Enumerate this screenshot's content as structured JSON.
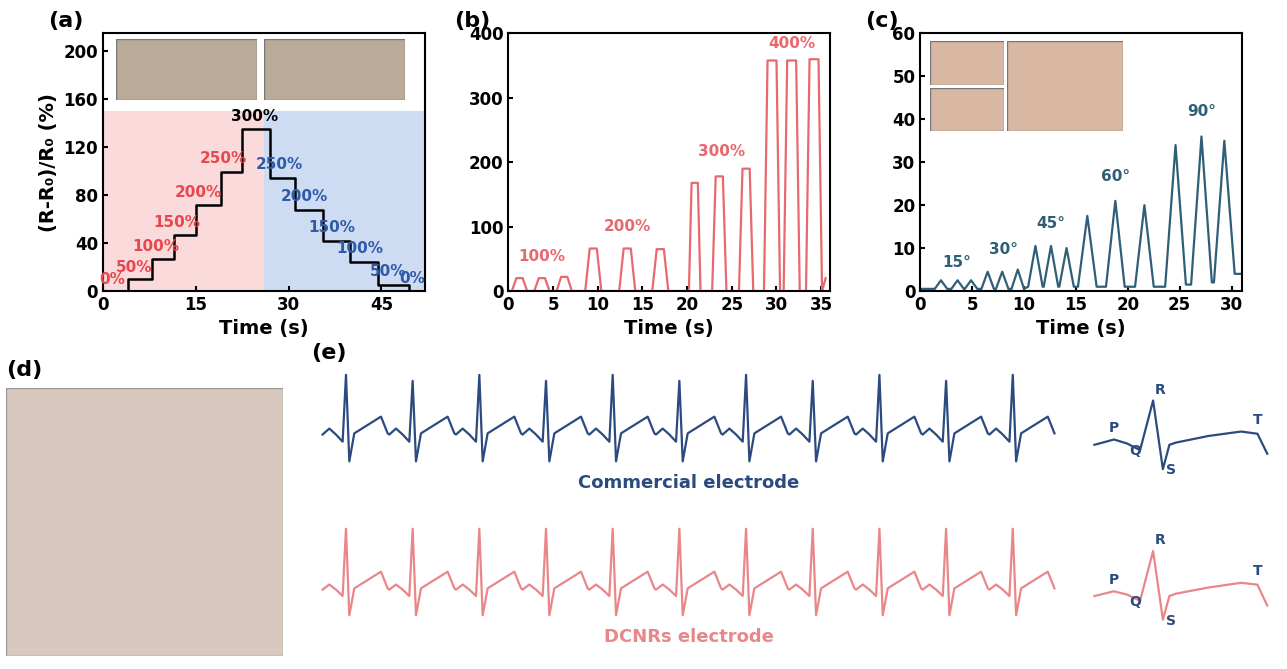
{
  "chart_data": [
    {
      "type": "line",
      "panel_label": "(a)",
      "x_label": "Time (s)",
      "y_label": "(R-R₀)/R₀ (%)",
      "xlim": [
        0,
        52
      ],
      "xticks": [
        0,
        15,
        30,
        45
      ],
      "ylim": [
        0,
        215
      ],
      "yticks": [
        0,
        40,
        80,
        120,
        160,
        200
      ],
      "shaded_regions": [
        {
          "x": [
            0,
            26
          ],
          "y": [
            0,
            150
          ],
          "color": "#fadada"
        },
        {
          "x": [
            26,
            52
          ],
          "y": [
            0,
            150
          ],
          "color": "#cddcf2"
        }
      ],
      "series": [
        {
          "x": [
            0,
            4,
            8,
            11.5,
            15,
            19,
            22.5,
            27,
            31,
            35.5,
            40,
            44.5,
            49.5,
            51
          ],
          "values": [
            0,
            10,
            27,
            47,
            72,
            99,
            135,
            94,
            68,
            42,
            24,
            5,
            0,
            0
          ],
          "color": "#000000",
          "line_style": "step"
        }
      ],
      "annotations": [
        {
          "text": "0%",
          "x": 1.5,
          "y": 3,
          "color": "#e8474f"
        },
        {
          "text": "50%",
          "x": 5,
          "y": 13,
          "color": "#e8474f"
        },
        {
          "text": "100%",
          "x": 8.5,
          "y": 31,
          "color": "#e8474f"
        },
        {
          "text": "150%",
          "x": 12,
          "y": 51,
          "color": "#e8474f"
        },
        {
          "text": "200%",
          "x": 15.5,
          "y": 76,
          "color": "#e8474f"
        },
        {
          "text": "250%",
          "x": 19.5,
          "y": 104,
          "color": "#e8474f"
        },
        {
          "text": "300%",
          "x": 24.5,
          "y": 139,
          "color": "#000000"
        },
        {
          "text": "250%",
          "x": 28.5,
          "y": 99,
          "color": "#2e5aa8"
        },
        {
          "text": "200%",
          "x": 32.5,
          "y": 73,
          "color": "#2e5aa8"
        },
        {
          "text": "150%",
          "x": 37,
          "y": 47,
          "color": "#2e5aa8"
        },
        {
          "text": "100%",
          "x": 41.5,
          "y": 29,
          "color": "#2e5aa8"
        },
        {
          "text": "50%",
          "x": 46,
          "y": 10,
          "color": "#2e5aa8"
        },
        {
          "text": "0%",
          "x": 50,
          "y": 4,
          "color": "#2e5aa8"
        }
      ]
    },
    {
      "type": "line",
      "panel_label": "(b)",
      "x_label": "Time (s)",
      "xlim": [
        0,
        36
      ],
      "xticks": [
        0,
        5,
        10,
        15,
        20,
        25,
        30,
        35
      ],
      "ylim": [
        0,
        400
      ],
      "yticks": [
        0,
        100,
        200,
        300,
        400
      ],
      "series": [
        {
          "x": [
            0,
            0.4,
            0.9,
            1.6,
            2.1,
            2.9,
            3.4,
            4.1,
            4.6,
            5.4,
            5.9,
            6.6,
            7.1,
            8.6,
            9.1,
            9.9,
            10.4,
            12.4,
            12.9,
            13.7,
            14.2,
            16.1,
            16.6,
            17.4,
            17.9,
            20.2,
            20.5,
            21.2,
            21.5,
            22.8,
            23.2,
            24.0,
            24.4,
            25.8,
            26.2,
            27.0,
            27.4,
            28.6,
            29.0,
            30.0,
            30.4,
            30.8,
            31.2,
            32.2,
            32.6,
            33.3,
            33.7,
            34.7,
            35.1,
            35.5
          ],
          "values": [
            0,
            0,
            20,
            20,
            0,
            0,
            20,
            20,
            0,
            0,
            22,
            22,
            0,
            0,
            66,
            66,
            0,
            0,
            66,
            66,
            0,
            0,
            65,
            65,
            0,
            0,
            168,
            168,
            0,
            0,
            178,
            178,
            0,
            0,
            190,
            190,
            0,
            0,
            358,
            358,
            0,
            0,
            358,
            358,
            0,
            0,
            360,
            360,
            0,
            20
          ],
          "color": "#e8686e",
          "line_style": "solid"
        }
      ],
      "annotations": [
        {
          "text": "100%",
          "x": 3.7,
          "y": 42,
          "color": "#e8686e"
        },
        {
          "text": "200%",
          "x": 13.3,
          "y": 88,
          "color": "#e8686e"
        },
        {
          "text": "300%",
          "x": 23.8,
          "y": 205,
          "color": "#e8686e"
        },
        {
          "text": "400%",
          "x": 31.7,
          "y": 372,
          "color": "#e8686e"
        }
      ]
    },
    {
      "type": "line",
      "panel_label": "(c)",
      "x_label": "Time (s)",
      "xlim": [
        0,
        31
      ],
      "xticks": [
        0,
        5,
        10,
        15,
        20,
        25,
        30
      ],
      "ylim": [
        0,
        60
      ],
      "yticks": [
        0,
        10,
        20,
        30,
        40,
        50,
        60
      ],
      "series": [
        {
          "x": [
            0,
            1.4,
            2.0,
            2.6,
            3.0,
            3.6,
            4.2,
            4.3,
            4.9,
            5.5,
            5.9,
            6.5,
            7.1,
            7.3,
            7.9,
            8.5,
            8.8,
            9.4,
            10.0,
            10.4,
            11.1,
            11.8,
            11.9,
            12.6,
            13.3,
            13.4,
            14.1,
            14.8,
            15.2,
            16.1,
            17.0,
            17.9,
            18.8,
            19.7,
            20.7,
            21.6,
            22.5,
            23.6,
            24.6,
            25.6,
            26.1,
            27.1,
            28.1,
            28.3,
            29.3,
            30.3,
            31
          ],
          "values": [
            0.5,
            0.5,
            2.5,
            0.5,
            0.5,
            2.5,
            0.5,
            0.5,
            2.5,
            0.5,
            0.5,
            4.5,
            0.5,
            0.5,
            4.5,
            0.5,
            0.5,
            5,
            0.5,
            1,
            10.5,
            1,
            1,
            10.5,
            1,
            1,
            10,
            1,
            1,
            17.5,
            1,
            1,
            21,
            1,
            1,
            20,
            1,
            1,
            34,
            1.5,
            1.5,
            36,
            2,
            2,
            35,
            4,
            4
          ],
          "color": "#2f5f78",
          "line_style": "solid"
        }
      ],
      "annotations": [
        {
          "text": "15°",
          "x": 3.5,
          "y": 5,
          "color": "#2f5f78"
        },
        {
          "text": "30°",
          "x": 8,
          "y": 8,
          "color": "#2f5f78"
        },
        {
          "text": "45°",
          "x": 12.6,
          "y": 14,
          "color": "#2f5f78"
        },
        {
          "text": "60°",
          "x": 18.8,
          "y": 25,
          "color": "#2f5f78"
        },
        {
          "text": "90°",
          "x": 27.1,
          "y": 40,
          "color": "#2f5f78"
        }
      ]
    },
    {
      "type": "image",
      "panel_label": "(d)"
    },
    {
      "type": "line",
      "panel_label": "(e)",
      "tick_labels": false,
      "x": [
        0.02,
        0.1,
        0.18,
        0.26,
        0.3,
        0.34,
        0.4,
        0.72,
        0.8,
        0.82,
        0.9,
        0.98,
        1.06,
        1.1,
        1.14,
        1.2,
        1.52,
        1.6,
        1.62,
        1.7,
        1.78,
        1.86,
        1.9,
        1.94,
        2.0,
        2.32,
        2.4,
        2.42,
        2.5,
        2.58,
        2.66,
        2.7,
        2.74,
        2.8,
        3.12,
        3.2,
        3.22,
        3.3,
        3.38,
        3.46,
        3.5,
        3.54,
        3.6,
        3.92,
        4.0,
        4.02,
        4.1,
        4.18,
        4.26,
        4.3,
        4.34,
        4.4,
        4.72,
        4.8,
        4.82,
        4.9,
        4.98,
        5.06,
        5.1,
        5.14,
        5.2,
        5.52,
        5.6,
        5.62,
        5.7,
        5.78,
        5.86,
        5.9,
        5.94,
        6.0,
        6.32,
        6.4,
        6.42,
        6.5,
        6.58,
        6.66,
        6.7,
        6.74,
        6.8,
        7.12,
        7.2,
        7.22,
        7.3,
        7.38,
        7.46,
        7.5,
        7.54,
        7.6,
        7.92,
        8.0,
        8.02,
        8.1,
        8.18,
        8.26,
        8.3,
        8.34,
        8.4,
        8.72,
        8.8
      ],
      "series": [
        {
          "name": "Commercial electrode",
          "color": "#2b4a80",
          "values": [
            0,
            0.1,
            0,
            -0.12,
            1,
            -0.45,
            0.02,
            0.3,
            0.02,
            0,
            0.1,
            0,
            -0.12,
            0.9,
            -0.45,
            0.02,
            0.3,
            0.02,
            0,
            0.1,
            0,
            -0.12,
            1,
            -0.45,
            0.02,
            0.3,
            0.02,
            0,
            0.1,
            0,
            -0.12,
            0.9,
            -0.45,
            0.02,
            0.3,
            0.02,
            0,
            0.1,
            0,
            -0.12,
            1,
            -0.45,
            0.02,
            0.3,
            0.02,
            0,
            0.1,
            0,
            -0.12,
            0.9,
            -0.45,
            0.02,
            0.3,
            0.02,
            0,
            0.1,
            0,
            -0.12,
            1,
            -0.45,
            0.02,
            0.3,
            0.02,
            0,
            0.1,
            0,
            -0.12,
            0.9,
            -0.45,
            0.02,
            0.3,
            0.02,
            0,
            0.1,
            0,
            -0.12,
            1,
            -0.45,
            0.02,
            0.3,
            0.02,
            0,
            0.1,
            0,
            -0.12,
            0.9,
            -0.45,
            0.02,
            0.3,
            0.02,
            0,
            0.1,
            0,
            -0.12,
            1,
            -0.45,
            0.02,
            0.3,
            0.02
          ]
        },
        {
          "name": "DCNRs electrode",
          "color": "#e9868a",
          "values": [
            0,
            0.08,
            0,
            -0.1,
            0.95,
            -0.4,
            0.02,
            0.28,
            0.02,
            0,
            0.08,
            0,
            -0.1,
            0.95,
            -0.4,
            0.02,
            0.28,
            0.02,
            0,
            0.08,
            0,
            -0.1,
            0.95,
            -0.4,
            0.02,
            0.28,
            0.02,
            0,
            0.08,
            0,
            -0.1,
            0.95,
            -0.4,
            0.02,
            0.28,
            0.02,
            0,
            0.08,
            0,
            -0.1,
            0.95,
            -0.4,
            0.02,
            0.28,
            0.02,
            0,
            0.08,
            0,
            -0.1,
            0.95,
            -0.4,
            0.02,
            0.28,
            0.02,
            0,
            0.08,
            0,
            -0.1,
            0.95,
            -0.4,
            0.02,
            0.28,
            0.02,
            0,
            0.08,
            0,
            -0.1,
            0.95,
            -0.4,
            0.02,
            0.28,
            0.02,
            0,
            0.08,
            0,
            -0.1,
            0.95,
            -0.4,
            0.02,
            0.28,
            0.02,
            0,
            0.08,
            0,
            -0.1,
            0.95,
            -0.4,
            0.02,
            0.28,
            0.02,
            0,
            0.08,
            0,
            -0.1,
            0.95,
            -0.4,
            0.02,
            0.28,
            0.02
          ]
        }
      ]
    },
    {
      "type": "line",
      "tick_labels": false,
      "series": [
        {
          "x": [
            0,
            0.12,
            0.2,
            0.28,
            0.36,
            0.42,
            0.46,
            0.5,
            0.7,
            0.9,
            1.0,
            1.06
          ],
          "values": [
            0,
            0.12,
            0.03,
            -0.12,
            1.0,
            -0.55,
            0.0,
            0.05,
            0.2,
            0.3,
            0.25,
            -0.2
          ],
          "color": "#2b4a80"
        }
      ],
      "annotations": [
        {
          "text": "P",
          "x": 0.12,
          "y": 0.22,
          "color": "#2b4a80"
        },
        {
          "text": "Q",
          "x": 0.25,
          "y": -0.3,
          "color": "#2b4a80"
        },
        {
          "text": "R",
          "x": 0.4,
          "y": 1.08,
          "color": "#2b4a80"
        },
        {
          "text": "S",
          "x": 0.47,
          "y": -0.72,
          "color": "#2b4a80"
        },
        {
          "text": "T",
          "x": 1.0,
          "y": 0.4,
          "color": "#2b4a80"
        }
      ]
    },
    {
      "type": "line",
      "tick_labels": false,
      "series": [
        {
          "x": [
            0,
            0.12,
            0.2,
            0.28,
            0.36,
            0.42,
            0.46,
            0.5,
            0.7,
            0.9,
            1.0,
            1.06
          ],
          "values": [
            0,
            0.1,
            0.03,
            -0.1,
            0.95,
            -0.5,
            0.0,
            0.05,
            0.18,
            0.28,
            0.24,
            -0.2
          ],
          "color": "#e9868a"
        }
      ],
      "annotations": [
        {
          "text": "P",
          "x": 0.12,
          "y": 0.2,
          "color": "#2b4a80"
        },
        {
          "text": "Q",
          "x": 0.25,
          "y": -0.28,
          "color": "#2b4a80"
        },
        {
          "text": "R",
          "x": 0.4,
          "y": 1.03,
          "color": "#2b4a80"
        },
        {
          "text": "S",
          "x": 0.47,
          "y": -0.68,
          "color": "#2b4a80"
        },
        {
          "text": "T",
          "x": 1.0,
          "y": 0.38,
          "color": "#2b4a80"
        }
      ]
    }
  ]
}
